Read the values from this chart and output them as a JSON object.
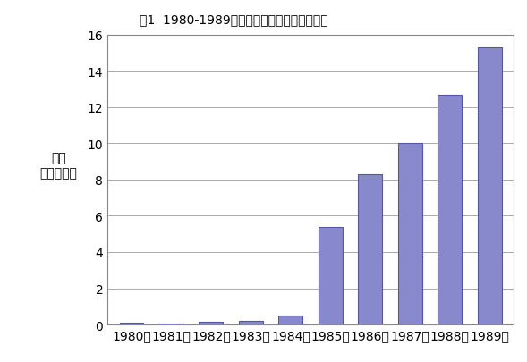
{
  "title": "图1  1980-1989年黑龙江省进出口总值走势图",
  "ylabel_line1": "总值",
  "ylabel_line2": "（亿美元）",
  "years": [
    "1980年",
    "1981年",
    "1982年",
    "1983年",
    "1984年",
    "1985年",
    "1986年",
    "1987年",
    "1988年",
    "1989年"
  ],
  "values": [
    0.1,
    0.05,
    0.15,
    0.2,
    0.5,
    5.4,
    8.3,
    10.0,
    12.7,
    15.3
  ],
  "bar_color": "#8888cc",
  "bar_edgecolor": "#5555aa",
  "ylim": [
    0,
    16
  ],
  "yticks": [
    0,
    2,
    4,
    6,
    8,
    10,
    12,
    14,
    16
  ],
  "title_fontsize": 14,
  "tick_fontsize": 10,
  "ylabel_fontsize": 10,
  "background_color": "#ffffff",
  "grid_color": "#aaaaaa"
}
